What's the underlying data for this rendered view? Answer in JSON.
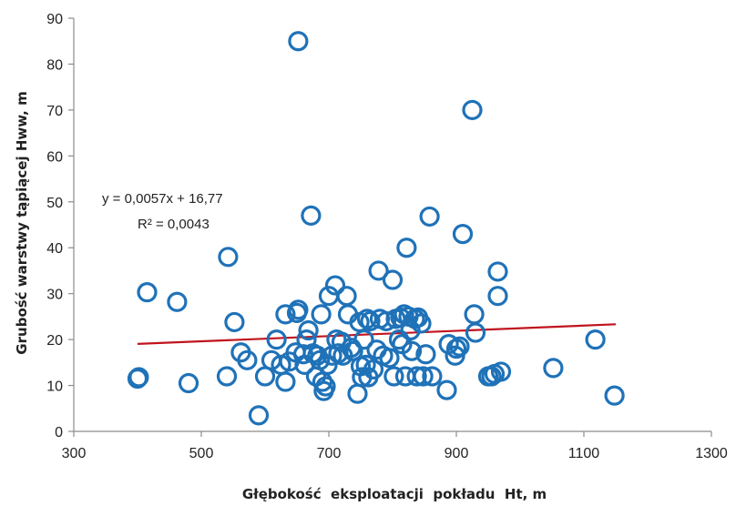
{
  "chart_data": {
    "type": "scatter",
    "xlabel": "Głębokość  eksploatacji  pokładu  Ht, m",
    "ylabel": "Grubość warstwy tąpiącej Hww, m",
    "xlim": [
      300,
      1300
    ],
    "ylim": [
      0,
      90
    ],
    "x_ticks": [
      300,
      500,
      700,
      900,
      1100,
      1300
    ],
    "y_ticks": [
      0,
      10,
      20,
      30,
      40,
      50,
      60,
      70,
      80,
      90
    ],
    "x_tick_labels": [
      "300",
      "500",
      "700",
      "900",
      "1100",
      "1300"
    ],
    "y_tick_labels": [
      "0",
      "10",
      "20",
      "30",
      "40",
      "50",
      "60",
      "70",
      "80",
      "90"
    ],
    "grid": false,
    "marker": "open-circle",
    "marker_color": "#1f72b8",
    "series": [
      {
        "points": [
          [
            400,
            11.5
          ],
          [
            402,
            11.8
          ],
          [
            415,
            30.3
          ],
          [
            462,
            28.2
          ],
          [
            480,
            10.5
          ],
          [
            540,
            12.0
          ],
          [
            542,
            38.0
          ],
          [
            552,
            23.8
          ],
          [
            562,
            17.2
          ],
          [
            572,
            15.5
          ],
          [
            590,
            3.5
          ],
          [
            600,
            12.0
          ],
          [
            610,
            15.5
          ],
          [
            618,
            20.0
          ],
          [
            625,
            14.5
          ],
          [
            632,
            10.8
          ],
          [
            632,
            25.5
          ],
          [
            638,
            15.2
          ],
          [
            648,
            17.2
          ],
          [
            650,
            25.8
          ],
          [
            652,
            85.0
          ],
          [
            652,
            26.5
          ],
          [
            660,
            16.8
          ],
          [
            662,
            14.5
          ],
          [
            665,
            20.0
          ],
          [
            668,
            22.0
          ],
          [
            672,
            47.0
          ],
          [
            675,
            17.0
          ],
          [
            680,
            12.0
          ],
          [
            682,
            16.5
          ],
          [
            686,
            15.5
          ],
          [
            688,
            25.5
          ],
          [
            690,
            10.8
          ],
          [
            692,
            8.8
          ],
          [
            695,
            9.8
          ],
          [
            698,
            14.5
          ],
          [
            700,
            29.5
          ],
          [
            705,
            16.5
          ],
          [
            710,
            31.8
          ],
          [
            712,
            20.0
          ],
          [
            715,
            17.0
          ],
          [
            720,
            19.5
          ],
          [
            722,
            16.5
          ],
          [
            728,
            29.5
          ],
          [
            730,
            25.5
          ],
          [
            735,
            18.2
          ],
          [
            738,
            17.5
          ],
          [
            745,
            8.2
          ],
          [
            748,
            23.8
          ],
          [
            750,
            14.2
          ],
          [
            752,
            11.8
          ],
          [
            755,
            20.0
          ],
          [
            758,
            14.5
          ],
          [
            760,
            24.5
          ],
          [
            762,
            11.8
          ],
          [
            765,
            24.0
          ],
          [
            770,
            13.5
          ],
          [
            775,
            17.8
          ],
          [
            778,
            35.0
          ],
          [
            780,
            24.5
          ],
          [
            785,
            16.5
          ],
          [
            790,
            24.0
          ],
          [
            795,
            16.0
          ],
          [
            800,
            33.0
          ],
          [
            802,
            12.0
          ],
          [
            805,
            24.5
          ],
          [
            810,
            20.0
          ],
          [
            812,
            24.8
          ],
          [
            815,
            19.0
          ],
          [
            818,
            25.5
          ],
          [
            820,
            12.0
          ],
          [
            822,
            40.0
          ],
          [
            825,
            25.0
          ],
          [
            828,
            22.0
          ],
          [
            830,
            17.5
          ],
          [
            835,
            24.5
          ],
          [
            838,
            12.0
          ],
          [
            840,
            24.8
          ],
          [
            845,
            23.5
          ],
          [
            848,
            12.0
          ],
          [
            852,
            16.8
          ],
          [
            858,
            46.8
          ],
          [
            862,
            12.0
          ],
          [
            885,
            9.0
          ],
          [
            888,
            19.0
          ],
          [
            898,
            16.5
          ],
          [
            900,
            18.0
          ],
          [
            905,
            18.5
          ],
          [
            910,
            43.0
          ],
          [
            925,
            70.0
          ],
          [
            928,
            25.5
          ],
          [
            930,
            21.5
          ],
          [
            950,
            12.0
          ],
          [
            955,
            12.0
          ],
          [
            960,
            12.5
          ],
          [
            965,
            34.8
          ],
          [
            965,
            29.5
          ],
          [
            970,
            13.0
          ],
          [
            1052,
            13.8
          ],
          [
            1118,
            20.0
          ],
          [
            1148,
            7.8
          ]
        ]
      }
    ],
    "trendline": {
      "type": "linear",
      "slope": 0.0057,
      "intercept": 16.77,
      "x_range": [
        400,
        1150
      ],
      "color": "#c0141e",
      "equation_label": "y = 0,0057x + 16,77",
      "r2_label": "R² = 0,0043"
    }
  }
}
